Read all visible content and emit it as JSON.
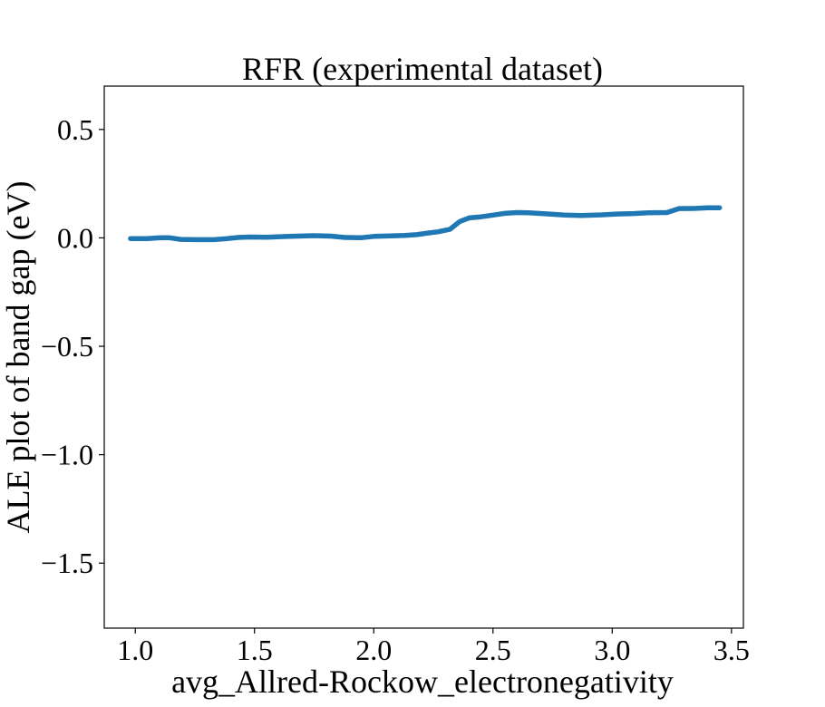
{
  "chart_data": {
    "type": "line",
    "title": "RFR (experimental dataset)",
    "xlabel": "avg_Allred-Rockow_electronegativity",
    "ylabel": "ALE plot of band gap (eV)",
    "xlim": [
      0.87,
      3.55
    ],
    "ylim": [
      -1.8,
      0.7
    ],
    "xticks": [
      1.0,
      1.5,
      2.0,
      2.5,
      3.0,
      3.5
    ],
    "xtick_labels": [
      "1.0",
      "1.5",
      "2.0",
      "2.5",
      "3.0",
      "3.5"
    ],
    "yticks": [
      0.5,
      0.0,
      -0.5,
      -1.0,
      -1.5
    ],
    "ytick_labels": [
      "0.5",
      "0.0",
      "−0.5",
      "−1.0",
      "−1.5"
    ],
    "grid": false,
    "legend": false,
    "line_color": "#1f77b4",
    "series": [
      {
        "x": [
          0.98,
          1.05,
          1.1,
          1.14,
          1.19,
          1.25,
          1.33,
          1.38,
          1.43,
          1.48,
          1.55,
          1.62,
          1.68,
          1.75,
          1.82,
          1.88,
          1.95,
          2.0,
          2.07,
          2.13,
          2.18,
          2.22,
          2.27,
          2.32,
          2.36,
          2.4,
          2.45,
          2.5,
          2.55,
          2.6,
          2.65,
          2.72,
          2.8,
          2.87,
          2.95,
          3.02,
          3.09,
          3.15,
          3.23,
          3.28,
          3.35,
          3.4,
          3.45
        ],
        "y": [
          -0.003,
          -0.003,
          0.0,
          0.001,
          -0.007,
          -0.008,
          -0.008,
          -0.004,
          0.002,
          0.004,
          0.003,
          0.006,
          0.008,
          0.01,
          0.008,
          0.002,
          0.001,
          0.007,
          0.009,
          0.011,
          0.015,
          0.021,
          0.028,
          0.04,
          0.075,
          0.092,
          0.097,
          0.105,
          0.113,
          0.117,
          0.116,
          0.111,
          0.105,
          0.103,
          0.106,
          0.11,
          0.112,
          0.116,
          0.117,
          0.135,
          0.136,
          0.139,
          0.139
        ]
      }
    ]
  }
}
